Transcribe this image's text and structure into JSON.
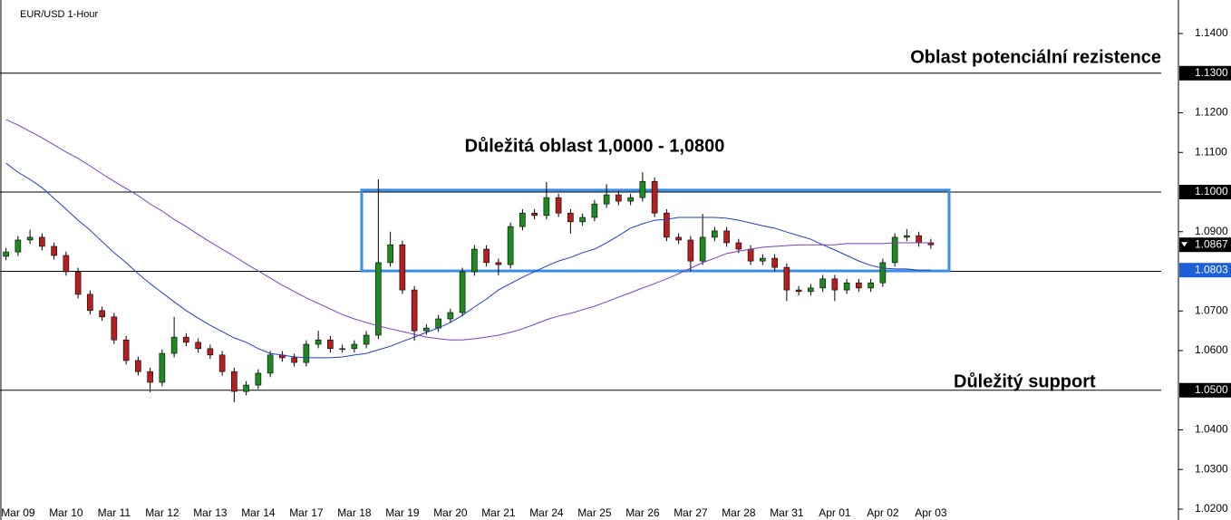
{
  "chart_data": {
    "type": "candlestick",
    "title": "EUR/USD 1-Hour",
    "categories": [
      null,
      "Mar 09",
      null,
      null,
      null,
      "Mar 10",
      null,
      null,
      null,
      "Mar 11",
      null,
      null,
      null,
      "Mar 12",
      null,
      null,
      null,
      "Mar 13",
      null,
      null,
      null,
      "Mar 14",
      null,
      null,
      null,
      "Mar 17",
      null,
      null,
      null,
      "Mar 18",
      null,
      null,
      null,
      "Mar 19",
      null,
      null,
      null,
      "Mar 20",
      null,
      null,
      null,
      "Mar 21",
      null,
      null,
      null,
      "Mar 24",
      null,
      null,
      null,
      "Mar 25",
      null,
      null,
      null,
      "Mar 26",
      null,
      null,
      null,
      "Mar 27",
      null,
      null,
      null,
      "Mar 28",
      null,
      null,
      null,
      "Mar 31",
      null,
      null,
      null,
      "Apr 01",
      null,
      null,
      null,
      "Apr 02",
      null,
      null,
      null,
      "Apr 03"
    ],
    "open": [
      1.0838,
      1.0849,
      1.0879,
      1.0886,
      1.0863,
      1.084,
      1.0799,
      1.0742,
      1.0701,
      1.0685,
      1.0627,
      1.0575,
      1.0547,
      1.052,
      1.0593,
      1.0634,
      1.0621,
      1.0605,
      1.0589,
      1.0547,
      1.0497,
      1.0513,
      1.0543,
      1.0589,
      1.0582,
      1.057,
      1.0616,
      1.0627,
      1.0605,
      1.0605,
      1.0616,
      1.0639,
      1.0822,
      1.0867,
      1.0753,
      1.065,
      1.0657,
      1.068,
      1.0696,
      1.0799,
      1.0856,
      1.0822,
      1.0817,
      1.0913,
      1.0947,
      1.0941,
      1.0986,
      1.0947,
      1.0925,
      1.0936,
      1.097,
      1.0993,
      1.0977,
      1.0986,
      1.1027,
      1.0947,
      1.0886,
      1.0879,
      1.0826,
      1.0886,
      1.0902,
      1.0872,
      1.0856,
      1.0826,
      1.0833,
      1.081,
      1.0753,
      1.0749,
      1.0758,
      1.0781,
      1.0753,
      1.0771,
      1.0758,
      1.0771,
      1.0822,
      1.0886,
      1.089,
      1.0872
    ],
    "high": [
      1.0859,
      1.0889,
      1.0905,
      1.0896,
      1.0873,
      1.085,
      1.0809,
      1.0752,
      1.0711,
      1.0695,
      1.0637,
      1.0585,
      1.0557,
      1.0603,
      1.0685,
      1.0644,
      1.0631,
      1.0615,
      1.0599,
      1.0557,
      1.0523,
      1.0553,
      1.0599,
      1.0599,
      1.0592,
      1.0626,
      1.065,
      1.0637,
      1.0615,
      1.0626,
      1.0649,
      1.1032,
      1.09,
      1.0877,
      1.0763,
      1.0667,
      1.069,
      1.0706,
      1.0809,
      1.0866,
      1.0866,
      1.0832,
      1.0923,
      1.0957,
      1.0957,
      1.1025,
      1.0996,
      1.0957,
      1.0946,
      1.098,
      1.102,
      1.1003,
      1.0996,
      1.105,
      1.1037,
      1.0957,
      1.0896,
      1.0889,
      1.0945,
      1.0912,
      1.0912,
      1.0882,
      1.0866,
      1.0843,
      1.0843,
      1.082,
      1.0763,
      1.0768,
      1.0791,
      1.0791,
      1.0781,
      1.0781,
      1.0781,
      1.0832,
      1.0896,
      1.0906,
      1.09,
      1.0882
    ],
    "low": [
      1.0828,
      1.0839,
      1.0869,
      1.0853,
      1.083,
      1.0789,
      1.0732,
      1.0691,
      1.0675,
      1.0617,
      1.0565,
      1.0537,
      1.0495,
      1.051,
      1.0583,
      1.0611,
      1.0595,
      1.0579,
      1.0537,
      1.047,
      1.0487,
      1.0503,
      1.0533,
      1.0572,
      1.056,
      1.056,
      1.0606,
      1.0595,
      1.0595,
      1.0595,
      1.0606,
      1.0629,
      1.0812,
      1.0743,
      1.0625,
      1.064,
      1.0647,
      1.067,
      1.0686,
      1.0789,
      1.0812,
      1.079,
      1.0807,
      1.0903,
      1.0931,
      1.0931,
      1.0937,
      1.0895,
      1.0915,
      1.0926,
      1.096,
      1.0967,
      1.0967,
      1.0976,
      1.0937,
      1.0876,
      1.0869,
      1.08,
      1.0816,
      1.0876,
      1.0862,
      1.0846,
      1.0816,
      1.0816,
      1.08,
      1.0725,
      1.0739,
      1.0739,
      1.0748,
      1.0725,
      1.0743,
      1.0748,
      1.0748,
      1.0761,
      1.0812,
      1.0876,
      1.0862,
      1.0857
    ],
    "close": [
      1.0849,
      1.0879,
      1.0886,
      1.0863,
      1.084,
      1.0799,
      1.0742,
      1.0701,
      1.0685,
      1.0627,
      1.0575,
      1.0547,
      1.052,
      1.0593,
      1.0634,
      1.0621,
      1.0605,
      1.0589,
      1.0547,
      1.0497,
      1.0513,
      1.0543,
      1.0589,
      1.0582,
      1.057,
      1.0616,
      1.0627,
      1.0605,
      1.0605,
      1.0616,
      1.0639,
      1.0822,
      1.0867,
      1.0753,
      1.065,
      1.0657,
      1.068,
      1.0696,
      1.0799,
      1.0856,
      1.0822,
      1.0817,
      1.0913,
      1.0947,
      1.0941,
      1.0986,
      1.0947,
      1.0925,
      1.0936,
      1.097,
      1.0993,
      1.0977,
      1.0986,
      1.1027,
      1.0947,
      1.0886,
      1.0879,
      1.0826,
      1.0886,
      1.0902,
      1.0872,
      1.0856,
      1.0826,
      1.0833,
      1.081,
      1.0753,
      1.0749,
      1.0758,
      1.0781,
      1.0753,
      1.0771,
      1.0758,
      1.0771,
      1.0822,
      1.0886,
      1.089,
      1.0872,
      1.0867
    ],
    "up_color": "#1f8a1f",
    "down_color": "#b42020",
    "lines": [
      {
        "color": "#1f3fbf",
        "values": [
          1.1073,
          1.105,
          1.1032,
          1.1011,
          1.0984,
          1.0957,
          1.0929,
          1.0904,
          1.0875,
          1.0847,
          1.0822,
          1.0794,
          1.0769,
          1.0746,
          1.0723,
          1.0701,
          1.0682,
          1.0664,
          1.0648,
          1.0632,
          1.0621,
          1.0605,
          1.0593,
          1.0589,
          1.0584,
          1.0582,
          1.0582,
          1.0582,
          1.0584,
          1.0589,
          1.0593,
          1.0602,
          1.0611,
          1.0623,
          1.0634,
          1.0646,
          1.0657,
          1.0671,
          1.0689,
          1.071,
          1.073,
          1.0753,
          1.0769,
          1.0785,
          1.0799,
          1.0813,
          1.0826,
          1.0835,
          1.0847,
          1.0856,
          1.0872,
          1.089,
          1.0909,
          1.092,
          1.0929,
          1.0931,
          1.0936,
          1.0936,
          1.0936,
          1.0936,
          1.0934,
          1.0929,
          1.0922,
          1.0915,
          1.0909,
          1.0899,
          1.089,
          1.0881,
          1.0867,
          1.0854,
          1.084,
          1.0826,
          1.0815,
          1.0808,
          1.0806,
          1.0806,
          1.0803,
          1.0803
        ]
      },
      {
        "color": "#7b3fc0",
        "values": [
          1.1183,
          1.1169,
          1.1153,
          1.1137,
          1.1119,
          1.1101,
          1.1085,
          1.1066,
          1.1046,
          1.1027,
          1.1009,
          1.0991,
          1.097,
          1.0952,
          1.0931,
          1.0913,
          1.0893,
          1.0874,
          1.0856,
          1.0838,
          1.0819,
          1.0801,
          1.0783,
          1.0765,
          1.0749,
          1.0733,
          1.0719,
          1.0705,
          1.0691,
          1.068,
          1.0671,
          1.0662,
          1.0655,
          1.0648,
          1.0641,
          1.0634,
          1.063,
          1.0627,
          1.0627,
          1.063,
          1.0634,
          1.0639,
          1.0646,
          1.0655,
          1.0666,
          1.0678,
          1.0687,
          1.0694,
          1.0703,
          1.0712,
          1.0723,
          1.0735,
          1.0746,
          1.0758,
          1.0769,
          1.0781,
          1.0794,
          1.0808,
          1.0822,
          1.0833,
          1.0845,
          1.0851,
          1.0856,
          1.0861,
          1.0863,
          1.0865,
          1.0867,
          1.0867,
          1.0867,
          1.0867,
          1.087,
          1.087,
          1.087,
          1.087,
          1.0872,
          1.0872,
          1.0872,
          1.0872
        ]
      }
    ],
    "ylim": [
      1.01726,
      1.14846
    ],
    "yticks": [
      {
        "value": 1.14,
        "label": "1.1400"
      },
      {
        "value": 1.12,
        "label": "1.1200"
      },
      {
        "value": 1.11,
        "label": "1.1100"
      },
      {
        "value": 1.09,
        "label": "1.0900"
      },
      {
        "value": 1.07,
        "label": "1.0700"
      },
      {
        "value": 1.06,
        "label": "1.0600"
      },
      {
        "value": 1.04,
        "label": "1.0400"
      },
      {
        "value": 1.03,
        "label": "1.0300"
      },
      {
        "value": 1.02,
        "label": "1.0200"
      }
    ],
    "hlines": [
      {
        "value": 1.13,
        "label": "1.1300"
      },
      {
        "value": 1.1,
        "label": "1.1000"
      },
      {
        "value": 1.08
      },
      {
        "value": 1.05,
        "label": "1.0500"
      }
    ],
    "price_markers": [
      {
        "value": 1.0867,
        "label": "1.0867",
        "color": "#000000"
      },
      {
        "value": 1.0803,
        "label": "1.0803",
        "color": "#1c5fd6"
      }
    ],
    "box": {
      "ylim": [
        1.0801,
        1.1005
      ],
      "color": "#3a8ee6"
    },
    "annotations": [
      "Oblast potenciální rezistence",
      "Důležitá oblast 1,0000 - 1,0800",
      "Důležitý support"
    ]
  }
}
